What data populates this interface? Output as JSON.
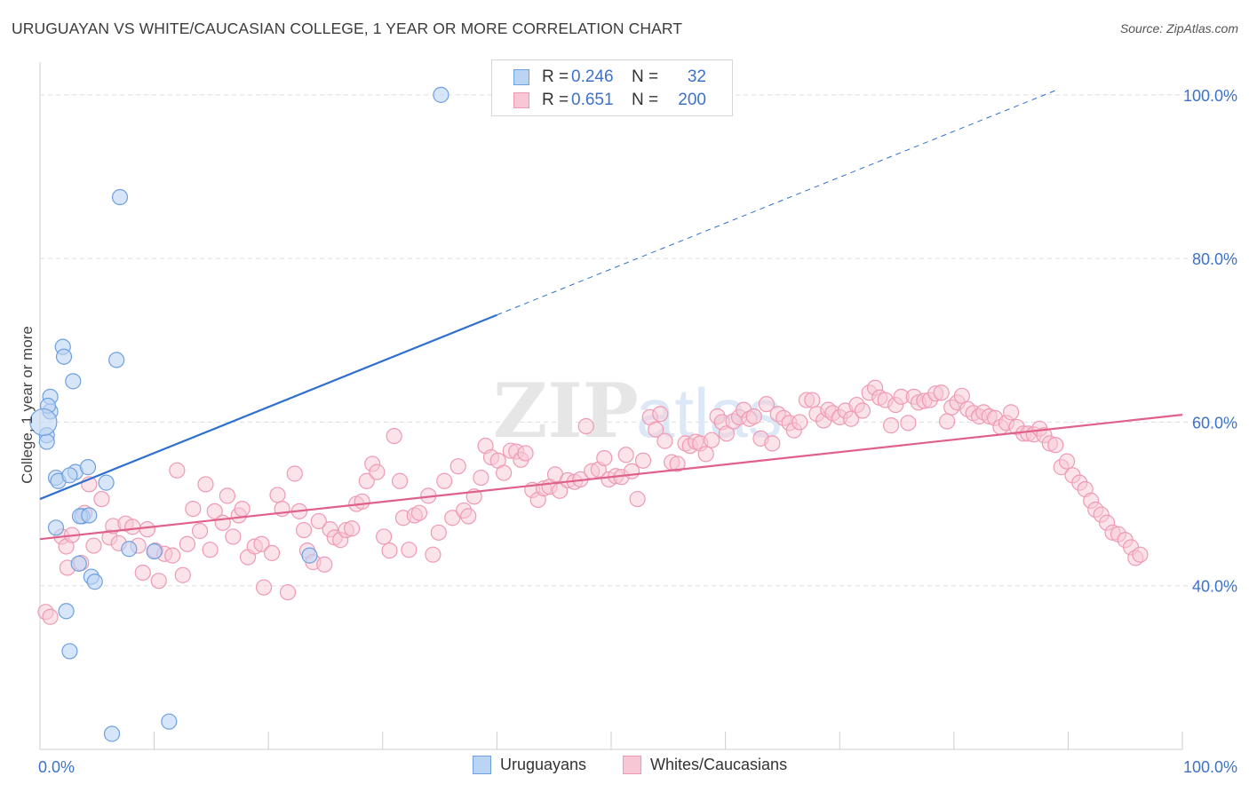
{
  "title": "URUGUAYAN VS WHITE/CAUCASIAN COLLEGE, 1 YEAR OR MORE CORRELATION CHART",
  "source": "Source: ZipAtlas.com",
  "watermark": {
    "zip": "ZIP",
    "atlas": "atlas"
  },
  "legend": [
    {
      "r_label": "R =",
      "r_value": "0.246",
      "n_label": "N =",
      "n_value": "32"
    },
    {
      "r_label": "R =",
      "r_value": "0.651",
      "n_label": "N =",
      "n_value": "200"
    }
  ],
  "chart_data": {
    "type": "scatter",
    "title": "URUGUAYAN VS WHITE/CAUCASIAN COLLEGE, 1 YEAR OR MORE CORRELATION CHART",
    "xlabel": "",
    "ylabel": "College, 1 year or more",
    "xlim": [
      0,
      100
    ],
    "ylim": [
      20,
      104
    ],
    "x_tick_labels": [
      {
        "value": 0,
        "label": "0.0%"
      },
      {
        "value": 100,
        "label": "100.0%"
      }
    ],
    "y_tick_labels": [
      {
        "value": 40,
        "label": "40.0%"
      },
      {
        "value": 60,
        "label": "60.0%"
      },
      {
        "value": 80,
        "label": "80.0%"
      },
      {
        "value": 100,
        "label": "100.0%"
      }
    ],
    "grid": true,
    "legend_position": "bottom",
    "series": [
      {
        "name": "Uruguayans",
        "color": "#6fa0e0",
        "fill": "#bcd4f4",
        "trend_color": "#2e6fd0",
        "trend": {
          "x0": 0,
          "y0": 50.6,
          "x1": 40,
          "y1": 73.1,
          "dashed_to_x": 89,
          "dashed_to_y": 100.6
        },
        "points": [
          [
            35.1,
            100.0
          ],
          [
            7.0,
            87.5
          ],
          [
            2.0,
            69.2
          ],
          [
            2.1,
            68.0
          ],
          [
            6.7,
            67.6
          ],
          [
            2.9,
            65.0
          ],
          [
            0.9,
            63.1
          ],
          [
            0.9,
            61.3
          ],
          [
            0.7,
            62.0
          ],
          [
            0.6,
            58.4
          ],
          [
            0.6,
            57.6
          ],
          [
            3.1,
            53.9
          ],
          [
            4.2,
            54.5
          ],
          [
            1.4,
            53.2
          ],
          [
            1.6,
            52.8
          ],
          [
            5.8,
            52.6
          ],
          [
            3.7,
            48.5
          ],
          [
            3.5,
            48.5
          ],
          [
            1.4,
            47.1
          ],
          [
            7.8,
            44.5
          ],
          [
            10.0,
            44.2
          ],
          [
            23.6,
            43.7
          ],
          [
            3.4,
            42.7
          ],
          [
            4.5,
            41.1
          ],
          [
            4.8,
            40.5
          ],
          [
            2.3,
            36.9
          ],
          [
            2.6,
            32.0
          ],
          [
            11.3,
            23.4
          ],
          [
            6.3,
            21.9
          ],
          [
            0.3,
            60.0
          ],
          [
            2.6,
            53.5
          ],
          [
            4.3,
            48.6
          ]
        ]
      },
      {
        "name": "Whites/Caucasians",
        "color": "#ef9ab4",
        "fill": "#f7c7d6",
        "trend_color": "#e0608c",
        "trend": {
          "x0": 0,
          "y0": 45.7,
          "x1": 100,
          "y1": 60.9
        },
        "points": [
          [
            0.5,
            36.8
          ],
          [
            0.9,
            36.2
          ],
          [
            1.9,
            46.0
          ],
          [
            2.3,
            44.8
          ],
          [
            2.4,
            42.2
          ],
          [
            2.8,
            46.2
          ],
          [
            3.6,
            42.8
          ],
          [
            3.9,
            48.9
          ],
          [
            4.3,
            52.4
          ],
          [
            4.7,
            44.9
          ],
          [
            5.4,
            50.6
          ],
          [
            6.1,
            45.9
          ],
          [
            6.4,
            47.3
          ],
          [
            6.9,
            45.2
          ],
          [
            7.5,
            47.6
          ],
          [
            8.1,
            47.2
          ],
          [
            8.6,
            44.9
          ],
          [
            9.0,
            41.6
          ],
          [
            9.4,
            46.9
          ],
          [
            10.1,
            44.3
          ],
          [
            10.4,
            40.6
          ],
          [
            10.9,
            43.9
          ],
          [
            11.6,
            43.7
          ],
          [
            12.0,
            54.1
          ],
          [
            12.5,
            41.3
          ],
          [
            12.9,
            45.1
          ],
          [
            13.4,
            49.4
          ],
          [
            14.0,
            46.7
          ],
          [
            14.5,
            52.4
          ],
          [
            14.9,
            44.4
          ],
          [
            15.3,
            49.1
          ],
          [
            16.0,
            47.7
          ],
          [
            16.4,
            51.0
          ],
          [
            16.9,
            46.0
          ],
          [
            17.4,
            48.6
          ],
          [
            17.7,
            49.4
          ],
          [
            18.2,
            43.5
          ],
          [
            18.8,
            44.8
          ],
          [
            19.4,
            45.1
          ],
          [
            19.6,
            39.8
          ],
          [
            20.3,
            44.0
          ],
          [
            20.8,
            51.1
          ],
          [
            21.2,
            49.4
          ],
          [
            21.7,
            39.2
          ],
          [
            22.3,
            53.7
          ],
          [
            22.7,
            49.1
          ],
          [
            23.1,
            46.8
          ],
          [
            23.4,
            44.3
          ],
          [
            23.9,
            42.9
          ],
          [
            24.4,
            47.9
          ],
          [
            24.9,
            42.6
          ],
          [
            25.4,
            46.9
          ],
          [
            25.8,
            45.9
          ],
          [
            26.3,
            45.6
          ],
          [
            26.8,
            46.8
          ],
          [
            27.3,
            47.0
          ],
          [
            27.7,
            50.0
          ],
          [
            28.2,
            50.3
          ],
          [
            28.6,
            52.8
          ],
          [
            29.1,
            54.9
          ],
          [
            29.5,
            53.9
          ],
          [
            30.1,
            46.0
          ],
          [
            30.6,
            44.3
          ],
          [
            31.0,
            58.3
          ],
          [
            31.5,
            52.8
          ],
          [
            31.8,
            48.3
          ],
          [
            32.3,
            44.4
          ],
          [
            32.8,
            48.6
          ],
          [
            33.2,
            48.9
          ],
          [
            34.0,
            51.0
          ],
          [
            34.4,
            43.8
          ],
          [
            34.9,
            46.5
          ],
          [
            35.4,
            52.8
          ],
          [
            36.1,
            48.3
          ],
          [
            36.6,
            54.6
          ],
          [
            37.1,
            49.2
          ],
          [
            37.5,
            48.5
          ],
          [
            38.0,
            50.9
          ],
          [
            38.6,
            53.2
          ],
          [
            39.0,
            57.1
          ],
          [
            39.5,
            55.7
          ],
          [
            40.1,
            55.3
          ],
          [
            40.6,
            53.8
          ],
          [
            41.2,
            56.5
          ],
          [
            41.7,
            56.4
          ],
          [
            42.1,
            55.4
          ],
          [
            42.5,
            56.2
          ],
          [
            43.1,
            51.7
          ],
          [
            43.6,
            50.5
          ],
          [
            44.1,
            51.9
          ],
          [
            44.6,
            52.1
          ],
          [
            45.1,
            53.6
          ],
          [
            45.5,
            51.6
          ],
          [
            46.2,
            52.9
          ],
          [
            46.8,
            52.7
          ],
          [
            47.3,
            53.0
          ],
          [
            47.8,
            59.5
          ],
          [
            48.3,
            54.0
          ],
          [
            48.9,
            54.2
          ],
          [
            49.4,
            55.6
          ],
          [
            49.8,
            53.0
          ],
          [
            50.4,
            53.4
          ],
          [
            50.9,
            53.3
          ],
          [
            51.3,
            56.0
          ],
          [
            51.8,
            54.0
          ],
          [
            52.3,
            50.6
          ],
          [
            52.8,
            55.3
          ],
          [
            53.4,
            60.6
          ],
          [
            53.9,
            59.1
          ],
          [
            54.3,
            61.0
          ],
          [
            54.7,
            57.7
          ],
          [
            55.3,
            55.1
          ],
          [
            55.8,
            54.9
          ],
          [
            56.5,
            57.4
          ],
          [
            56.9,
            57.1
          ],
          [
            57.4,
            57.6
          ],
          [
            57.8,
            57.4
          ],
          [
            58.3,
            56.1
          ],
          [
            58.8,
            57.8
          ],
          [
            59.3,
            60.7
          ],
          [
            59.7,
            60.0
          ],
          [
            60.1,
            58.6
          ],
          [
            60.7,
            60.1
          ],
          [
            61.2,
            60.6
          ],
          [
            61.6,
            61.5
          ],
          [
            62.1,
            60.4
          ],
          [
            62.5,
            60.7
          ],
          [
            63.1,
            58.0
          ],
          [
            63.6,
            62.2
          ],
          [
            64.1,
            57.4
          ],
          [
            64.6,
            61.0
          ],
          [
            65.1,
            60.5
          ],
          [
            65.6,
            59.9
          ],
          [
            66.0,
            59.0
          ],
          [
            66.5,
            60.0
          ],
          [
            67.1,
            62.7
          ],
          [
            67.6,
            62.7
          ],
          [
            68.0,
            61.0
          ],
          [
            68.6,
            60.2
          ],
          [
            69.0,
            61.5
          ],
          [
            69.4,
            61.1
          ],
          [
            70.0,
            60.6
          ],
          [
            70.5,
            61.4
          ],
          [
            71.0,
            60.4
          ],
          [
            71.5,
            62.1
          ],
          [
            72.0,
            61.4
          ],
          [
            72.6,
            63.6
          ],
          [
            73.1,
            64.2
          ],
          [
            73.5,
            63.0
          ],
          [
            74.0,
            62.7
          ],
          [
            74.5,
            59.6
          ],
          [
            74.9,
            62.1
          ],
          [
            75.4,
            63.1
          ],
          [
            76.0,
            59.9
          ],
          [
            76.5,
            63.1
          ],
          [
            76.9,
            62.4
          ],
          [
            77.4,
            62.6
          ],
          [
            77.9,
            62.7
          ],
          [
            78.4,
            63.5
          ],
          [
            78.9,
            63.6
          ],
          [
            79.4,
            60.1
          ],
          [
            79.8,
            61.8
          ],
          [
            80.3,
            62.4
          ],
          [
            80.7,
            63.2
          ],
          [
            81.2,
            61.6
          ],
          [
            81.7,
            61.1
          ],
          [
            82.2,
            60.7
          ],
          [
            82.6,
            61.2
          ],
          [
            83.1,
            60.7
          ],
          [
            83.6,
            60.5
          ],
          [
            84.1,
            59.4
          ],
          [
            84.6,
            59.9
          ],
          [
            85.0,
            61.2
          ],
          [
            85.5,
            59.4
          ],
          [
            86.1,
            58.6
          ],
          [
            86.5,
            58.6
          ],
          [
            87.0,
            58.5
          ],
          [
            87.5,
            59.2
          ],
          [
            87.9,
            58.4
          ],
          [
            88.4,
            57.4
          ],
          [
            88.9,
            57.2
          ],
          [
            89.4,
            54.5
          ],
          [
            89.9,
            55.2
          ],
          [
            90.4,
            53.5
          ],
          [
            91.0,
            52.6
          ],
          [
            91.5,
            51.8
          ],
          [
            92.0,
            50.4
          ],
          [
            92.4,
            49.3
          ],
          [
            92.9,
            48.7
          ],
          [
            93.4,
            47.7
          ],
          [
            93.9,
            46.5
          ],
          [
            94.4,
            46.3
          ],
          [
            95.0,
            45.6
          ],
          [
            95.5,
            44.7
          ],
          [
            95.9,
            43.4
          ],
          [
            96.3,
            43.8
          ]
        ]
      }
    ]
  }
}
